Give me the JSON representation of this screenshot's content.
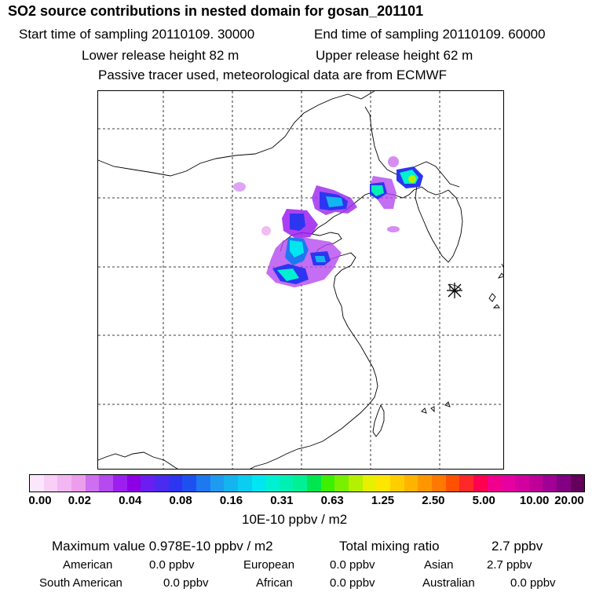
{
  "header": {
    "title": "SO2 source contributions in nested domain for gosan_201101",
    "start_sampling": "Start time of sampling 20110109. 30000",
    "end_sampling": "End time of sampling 20110109. 60000",
    "lower_release": "Lower release height   82 m",
    "upper_release": "Upper release height   62 m",
    "tracer_note": "Passive tracer used, meteorological data are from ECMWF"
  },
  "map": {
    "station_marker": "gosan-station-marker"
  },
  "colorbar": {
    "colors": [
      "#fce6fc",
      "#f7cff7",
      "#f2b7f2",
      "#ec9eec",
      "#cd6ff0",
      "#b44af0",
      "#9c1ff0",
      "#8c00e6",
      "#6a1ef0",
      "#4b2bf0",
      "#2d35f0",
      "#1e50f0",
      "#1e78f0",
      "#1e9bf0",
      "#14b4f0",
      "#0acdf0",
      "#00e6f0",
      "#00f0d2",
      "#00f0b4",
      "#00f096",
      "#00e650",
      "#3cf000",
      "#78f000",
      "#b4f000",
      "#e6f000",
      "#ffe600",
      "#ffcd00",
      "#ffb400",
      "#ff9600",
      "#ff7800",
      "#ff5000",
      "#ff2828",
      "#ff0050",
      "#f0008c",
      "#e600a0",
      "#d200a0",
      "#be0096",
      "#a00096",
      "#820082",
      "#64005a"
    ],
    "ticks": [
      "0.00",
      "0.02",
      "0.04",
      "0.08",
      "0.16",
      "0.31",
      "0.63",
      "1.25",
      "2.50",
      "5.00",
      "10.00",
      "20.00"
    ],
    "units": "10E-10 ppbv / m2"
  },
  "stats": {
    "max_label": "Maximum value  0.978E-10 ppbv / m2",
    "total_label": "Total mixing ratio",
    "total_value": "2.7 ppbv",
    "american_label": "American",
    "american_value": "0.0 ppbv",
    "european_label": "European",
    "european_value": "0.0 ppbv",
    "asian_label": "Asian",
    "asian_value": "2.7 ppbv",
    "south_american_label": "South American",
    "south_american_value": "0.0 ppbv",
    "african_label": "African",
    "african_value": "0.0 ppbv",
    "australian_label": "Australian",
    "australian_value": "0.0 ppbv"
  }
}
